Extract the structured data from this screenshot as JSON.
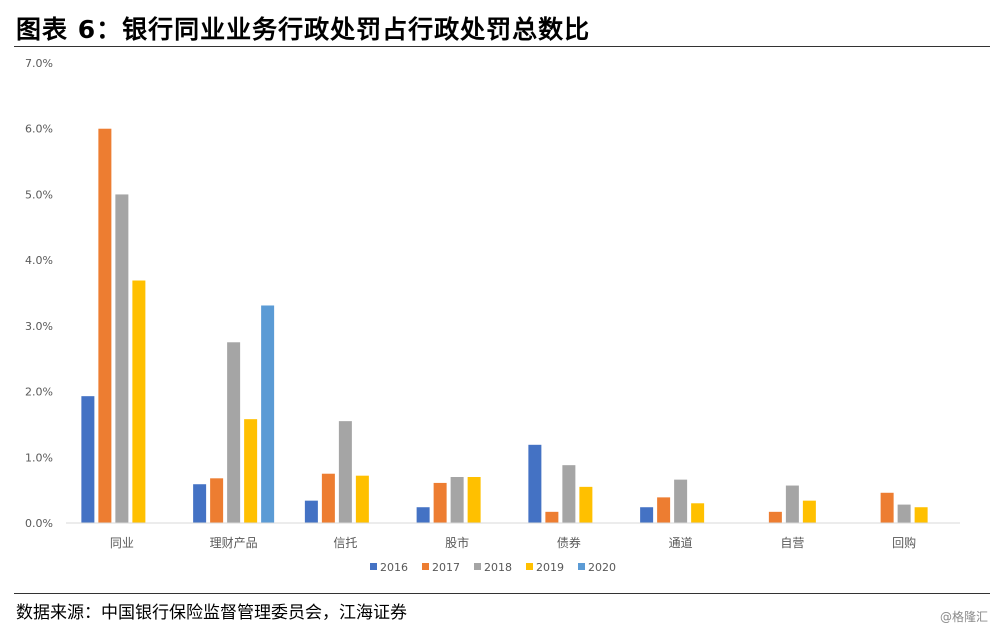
{
  "figure_title": "图表 6：银行同业业务行政处罚占行政处罚总数比",
  "source_note": "数据来源：中国银行保险监督管理委员会，江海证券",
  "watermark": "@格隆汇",
  "chart_data": {
    "type": "bar",
    "title": "",
    "xlabel": "",
    "ylabel": "",
    "ylim": [
      0,
      0.07
    ],
    "yticks": [
      0,
      0.01,
      0.02,
      0.03,
      0.04,
      0.05,
      0.06,
      0.07
    ],
    "ytick_labels": [
      "0.0%",
      "1.0%",
      "2.0%",
      "3.0%",
      "4.0%",
      "5.0%",
      "6.0%",
      "7.0%"
    ],
    "grid": false,
    "legend_position": "bottom",
    "categories": [
      "同业",
      "理财产品",
      "信托",
      "股市",
      "债券",
      "通道",
      "自营",
      "回购"
    ],
    "series": [
      {
        "name": "2016",
        "color": "#4472C4",
        "values": [
          0.0193,
          0.0059,
          0.0034,
          0.0024,
          0.0119,
          0.0024,
          null,
          null
        ]
      },
      {
        "name": "2017",
        "color": "#ED7D31",
        "values": [
          0.06,
          0.0068,
          0.0075,
          0.0061,
          0.0017,
          0.0039,
          0.0017,
          0.0046
        ]
      },
      {
        "name": "2018",
        "color": "#A5A5A5",
        "values": [
          0.05,
          0.0275,
          0.0155,
          0.007,
          0.0088,
          0.0066,
          0.0057,
          0.0028
        ]
      },
      {
        "name": "2019",
        "color": "#FFC000",
        "values": [
          0.0369,
          0.0158,
          0.0072,
          0.007,
          0.0055,
          0.003,
          0.0034,
          0.0024
        ]
      },
      {
        "name": "2020",
        "color": "#5B9BD5",
        "values": [
          null,
          0.0331,
          null,
          null,
          null,
          null,
          null,
          null
        ]
      }
    ]
  }
}
